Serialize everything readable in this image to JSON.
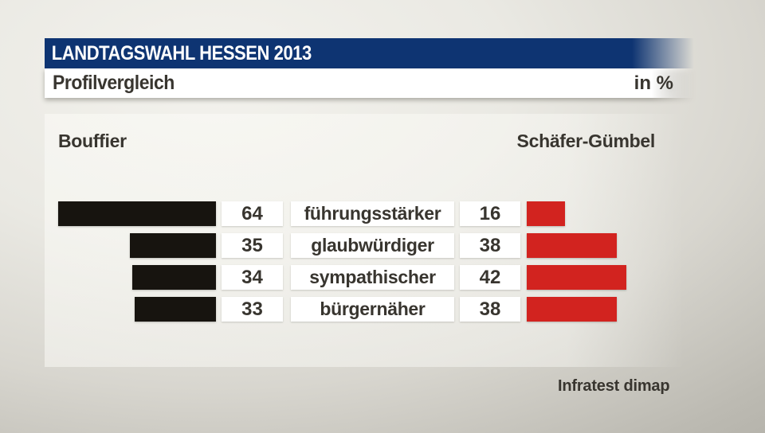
{
  "header": {
    "title": "LANDTAGSWAHL HESSEN 2013",
    "subtitle": "Profilvergleich",
    "unit_label": "in %"
  },
  "candidates": {
    "left": "Bouffier",
    "right": "Schäfer-Gümbel"
  },
  "source": "Infratest dimap",
  "colors": {
    "header_bg": "#0e3472",
    "header_text": "#ffffff",
    "left_bar": "#17140f",
    "right_bar": "#d2231f",
    "box_bg": "#ffffff",
    "text": "#38352f"
  },
  "chart_data": {
    "type": "bar",
    "orientation": "horizontal-diverging",
    "title": "Profilvergleich",
    "unit": "%",
    "value_range": [
      0,
      100
    ],
    "categories": [
      "führungsstärker",
      "glaubwürdiger",
      "sympathischer",
      "bürgernäher"
    ],
    "series": [
      {
        "name": "Bouffier",
        "color": "#17140f",
        "direction": "left",
        "values": [
          64,
          35,
          34,
          33
        ]
      },
      {
        "name": "Schäfer-Gümbel",
        "color": "#d2231f",
        "direction": "right",
        "values": [
          16,
          38,
          42,
          38
        ]
      }
    ],
    "legend_position": "above-chart-as-names",
    "grid": false,
    "source": "Infratest dimap"
  }
}
